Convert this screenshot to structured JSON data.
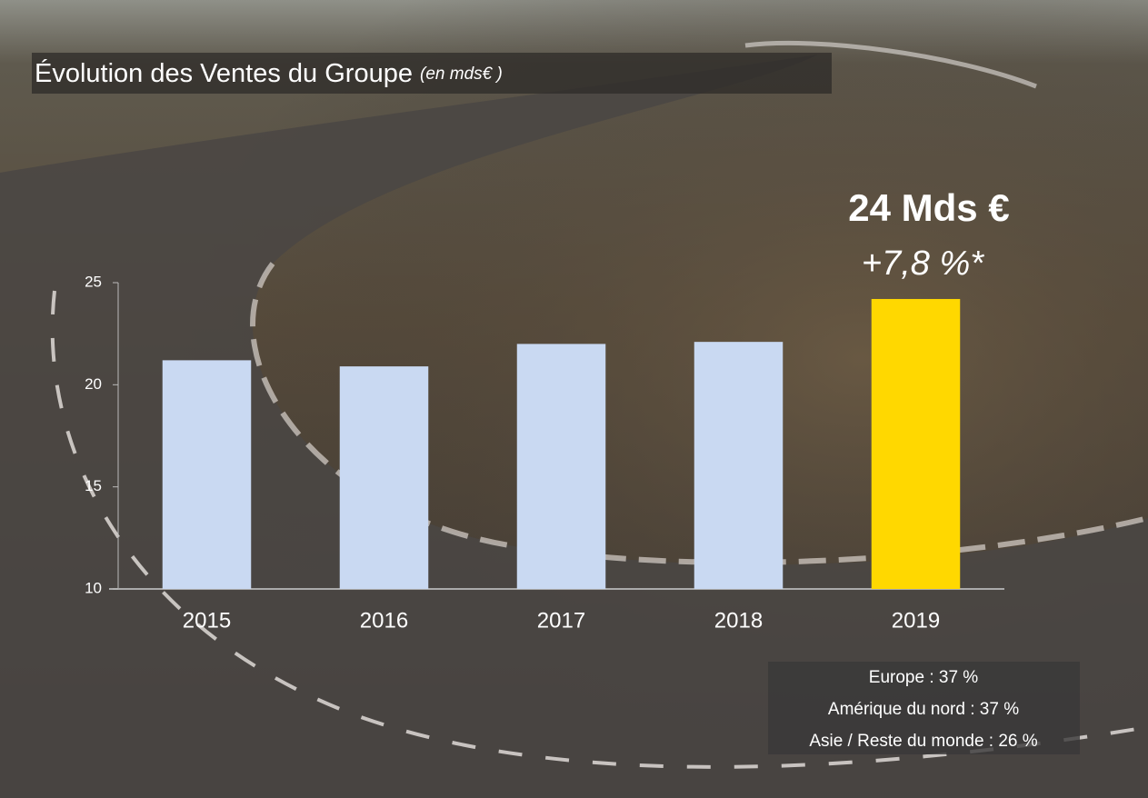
{
  "chart_data": {
    "type": "bar",
    "title": "Évolution des Ventes du Groupe",
    "subtitle": "(en mds€ )",
    "categories": [
      "2015",
      "2016",
      "2017",
      "2018",
      "2019"
    ],
    "values": [
      21.2,
      20.9,
      22.0,
      22.1,
      24.2
    ],
    "colors": [
      "#c9d9f2",
      "#c9d9f2",
      "#c9d9f2",
      "#c9d9f2",
      "#ffd800"
    ],
    "ylim": [
      10,
      25
    ],
    "yticks": [
      10,
      15,
      20,
      25
    ],
    "grid": false,
    "annotations": [
      "24 Mds €",
      "+7,8 %*"
    ],
    "notes": [
      "Europe : 37 %",
      "Amérique du nord : 37 %",
      "Asie / Reste du monde : 26 %"
    ]
  }
}
